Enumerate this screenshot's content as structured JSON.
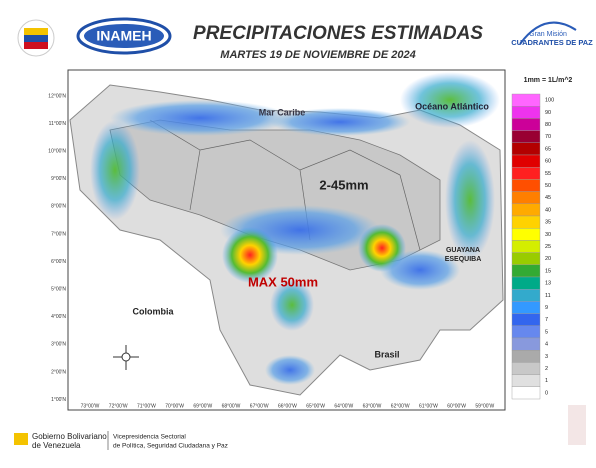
{
  "header": {
    "logo_text": "INAMEH",
    "title": "PRECIPITACIONES ESTIMADAS",
    "date": "MARTES 19 DE NOVIEMBRE DE 2024",
    "badge_line1": "Gran Misión",
    "badge_line2": "CUADRANTES DE PAZ"
  },
  "map": {
    "labels": {
      "sea": "Mar Caribe",
      "ocean": "Océano Atlántico",
      "range": "2-45mm",
      "max": "MAX 50mm",
      "colombia": "Colombia",
      "brasil": "Brasil",
      "guayana_1": "GUAYANA",
      "guayana_2": "ESEQUIBA"
    },
    "lat_labels": [
      "12°00'N",
      "11°00'N",
      "10°00'N",
      "9°00'N",
      "8°00'N",
      "7°00'N",
      "6°00'N",
      "5°00'N",
      "4°00'N",
      "3°00'N",
      "2°00'N",
      "1°00'N"
    ],
    "lon_labels": [
      "73°00'W",
      "72°00'W",
      "71°00'W",
      "70°00'W",
      "69°00'W",
      "68°00'W",
      "67°00'W",
      "66°00'W",
      "65°00'W",
      "64°00'W",
      "63°00'W",
      "62°00'W",
      "61°00'W",
      "60°00'W",
      "59°00'W"
    ]
  },
  "legend": {
    "title": "1mm = 1L/m^2",
    "entries": [
      {
        "label": "100",
        "color": "#ff66ff"
      },
      {
        "label": "90",
        "color": "#ee33ee"
      },
      {
        "label": "80",
        "color": "#cc0099"
      },
      {
        "label": "70",
        "color": "#990033"
      },
      {
        "label": "65",
        "color": "#b30000"
      },
      {
        "label": "60",
        "color": "#e00000"
      },
      {
        "label": "55",
        "color": "#ff2020"
      },
      {
        "label": "50",
        "color": "#ff4f00"
      },
      {
        "label": "45",
        "color": "#ff7f00"
      },
      {
        "label": "40",
        "color": "#ffaa00"
      },
      {
        "label": "35",
        "color": "#ffd200"
      },
      {
        "label": "30",
        "color": "#ffff00"
      },
      {
        "label": "25",
        "color": "#d4ee00"
      },
      {
        "label": "20",
        "color": "#99cc00"
      },
      {
        "label": "15",
        "color": "#33aa33"
      },
      {
        "label": "13",
        "color": "#00aa88"
      },
      {
        "label": "11",
        "color": "#33aacc"
      },
      {
        "label": "9",
        "color": "#3399ff"
      },
      {
        "label": "7",
        "color": "#3366ee"
      },
      {
        "label": "5",
        "color": "#6688ee"
      },
      {
        "label": "4",
        "color": "#8899dd"
      },
      {
        "label": "3",
        "color": "#aaaaaa"
      },
      {
        "label": "2",
        "color": "#c8c8c8"
      },
      {
        "label": "1",
        "color": "#e0e0e0"
      },
      {
        "label": "0",
        "color": "#ffffff"
      }
    ]
  },
  "footer": {
    "gov_line1": "Gobierno Bolivariano",
    "gov_line2": "de Venezuela",
    "vp_line1": "Vicepresidencia Sectorial",
    "vp_line2": "de Política, Seguridad Ciudadana y Paz"
  }
}
